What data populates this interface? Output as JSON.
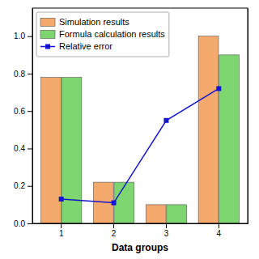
{
  "chart_data": {
    "type": "bar",
    "xlabel": "Data groups",
    "categories": [
      "1",
      "2",
      "3",
      "4"
    ],
    "series": [
      {
        "name": "Simulation results",
        "type": "bar",
        "color": "#F4A96D",
        "values": [
          0.78,
          0.22,
          0.1,
          1.0
        ]
      },
      {
        "name": "Formula calculation results",
        "type": "bar",
        "color": "#7ED670",
        "values": [
          0.78,
          0.22,
          0.1,
          0.9
        ]
      },
      {
        "name": "Relative error",
        "type": "line",
        "axis": "y2",
        "color": "#1414CC",
        "marker": "square",
        "line_style": "solid",
        "values": [
          0.13,
          0.11,
          0.55,
          0.72
        ]
      }
    ],
    "ylim": [
      0,
      1.15
    ],
    "yticks": [
      {
        "value": 0,
        "label": "0.0"
      },
      0.2,
      0.4,
      0.6,
      0.8,
      {
        "value": 1,
        "label": "1.0"
      }
    ],
    "y2lim": [
      0,
      1.15
    ],
    "y2ticks": [],
    "legend": "upper-left",
    "grid": false
  }
}
